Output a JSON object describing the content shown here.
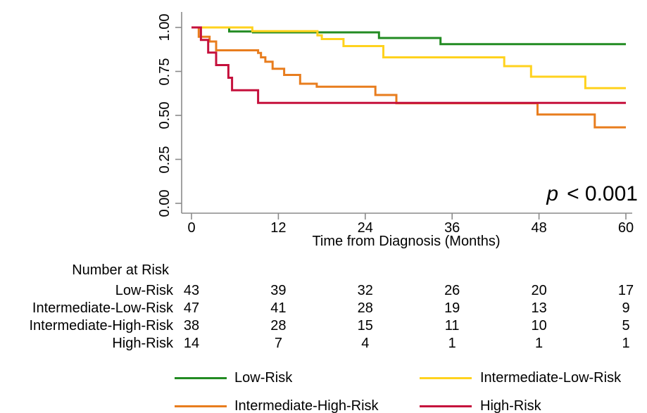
{
  "figure": {
    "p_italic": "p",
    "p_text": "< 0.001"
  },
  "chart_data": {
    "type": "line",
    "subtype": "kaplan-meier-step-curves",
    "title": "",
    "xlabel": "Time from Diagnosis (Months)",
    "ylabel": "",
    "xlim": [
      0,
      60
    ],
    "ylim": [
      0,
      1
    ],
    "grid": "off",
    "annotation": "p < 0.001",
    "x_ticks": [
      {
        "value": 0,
        "label": "0"
      },
      {
        "value": 12,
        "label": "12"
      },
      {
        "value": 24,
        "label": "24"
      },
      {
        "value": 36,
        "label": "36"
      },
      {
        "value": 48,
        "label": "48"
      },
      {
        "value": 60,
        "label": "60"
      }
    ],
    "y_ticks": [
      {
        "value": 0.0,
        "label": "0.00"
      },
      {
        "value": 0.25,
        "label": "0.25"
      },
      {
        "value": 0.5,
        "label": "0.50"
      },
      {
        "value": 0.75,
        "label": "0.75"
      },
      {
        "value": 1.0,
        "label": "1.00"
      }
    ],
    "axis_color": "#8a8a8a",
    "series": [
      {
        "name": "Low-Risk",
        "color": "#228B22",
        "steps": [
          [
            0,
            1.0
          ],
          [
            5.2,
            0.977
          ],
          [
            8.5,
            0.972
          ],
          [
            25.9,
            0.94
          ],
          [
            34.4,
            0.905
          ]
        ]
      },
      {
        "name": "Intermediate-Low-Risk",
        "color": "#FFD21E",
        "steps": [
          [
            0,
            1.0
          ],
          [
            8.4,
            0.979
          ],
          [
            17.4,
            0.955
          ],
          [
            18.0,
            0.934
          ],
          [
            21.0,
            0.894
          ],
          [
            26.5,
            0.83
          ],
          [
            43.2,
            0.78
          ],
          [
            46.9,
            0.72
          ],
          [
            54.4,
            0.655
          ]
        ]
      },
      {
        "name": "Intermediate-High-Risk",
        "color": "#E87D1E",
        "steps": [
          [
            0,
            1.0
          ],
          [
            1.0,
            0.947
          ],
          [
            2.5,
            0.92
          ],
          [
            3.4,
            0.87
          ],
          [
            9.2,
            0.855
          ],
          [
            9.6,
            0.83
          ],
          [
            10.2,
            0.805
          ],
          [
            11.2,
            0.765
          ],
          [
            12.8,
            0.73
          ],
          [
            15.0,
            0.68
          ],
          [
            17.3,
            0.663
          ],
          [
            25.4,
            0.616
          ],
          [
            28.3,
            0.569
          ],
          [
            47.8,
            0.505
          ],
          [
            55.7,
            0.432
          ]
        ]
      },
      {
        "name": "High-Risk",
        "color": "#C5103C",
        "steps": [
          [
            0,
            1.0
          ],
          [
            1.3,
            0.929
          ],
          [
            2.3,
            0.857
          ],
          [
            3.4,
            0.786
          ],
          [
            5.1,
            0.714
          ],
          [
            5.6,
            0.643
          ],
          [
            9.2,
            0.571
          ]
        ]
      }
    ]
  },
  "risk_table": {
    "header": "Number at Risk",
    "time_points": [
      0,
      12,
      24,
      36,
      48,
      60
    ],
    "rows": [
      {
        "label": "Low-Risk",
        "values": [
          43,
          39,
          32,
          26,
          20,
          17
        ]
      },
      {
        "label": "Intermediate-Low-Risk",
        "values": [
          47,
          41,
          28,
          19,
          13,
          9
        ]
      },
      {
        "label": "Intermediate-High-Risk",
        "values": [
          38,
          28,
          15,
          11,
          10,
          5
        ]
      },
      {
        "label": "High-Risk",
        "values": [
          14,
          7,
          4,
          1,
          1,
          1
        ]
      }
    ]
  },
  "legend": {
    "items": [
      {
        "label": "Low-Risk",
        "color": "#228B22"
      },
      {
        "label": "Intermediate-Low-Risk",
        "color": "#FFD21E"
      },
      {
        "label": "Intermediate-High-Risk",
        "color": "#E87D1E"
      },
      {
        "label": "High-Risk",
        "color": "#C5103C"
      }
    ]
  }
}
